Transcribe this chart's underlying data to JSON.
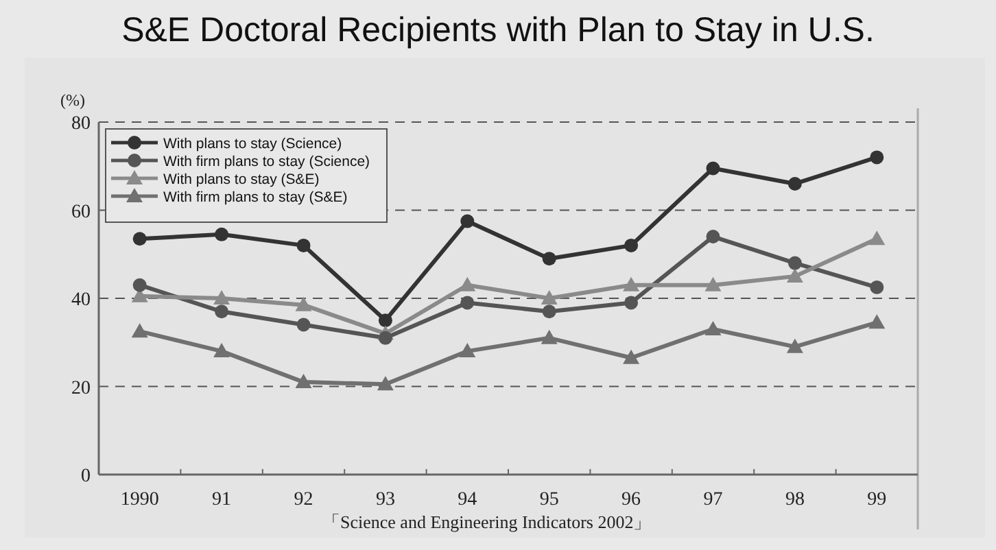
{
  "chart_data": {
    "type": "line",
    "title": "S&E Doctoral Recipients with Plan to Stay in U.S.",
    "ylabel": "(%)",
    "categories": [
      "1990",
      "91",
      "92",
      "93",
      "94",
      "95",
      "96",
      "97",
      "98",
      "99"
    ],
    "ylim": [
      0,
      80
    ],
    "yticks": [
      0,
      20,
      40,
      60,
      80
    ],
    "grid": "y",
    "legend": "top left",
    "annotations": [
      "「Science and Engineering Indicators 2002」"
    ],
    "series": [
      {
        "name": "With plans to stay (Science)",
        "color": "#333333",
        "marker": "circle",
        "values": [
          53.5,
          54.5,
          52,
          35,
          57.5,
          49,
          52,
          69.5,
          66,
          72
        ]
      },
      {
        "name": "With firm plans to stay (Science)",
        "color": "#555555",
        "marker": "circle",
        "values": [
          43,
          37,
          34,
          31,
          39,
          37,
          39,
          54,
          48,
          42.5
        ]
      },
      {
        "name": "With plans to stay (S&E)",
        "color": "#8a8a8a",
        "marker": "triangle",
        "values": [
          40.5,
          40,
          38.5,
          32,
          43,
          40,
          43,
          43,
          45,
          53.5
        ]
      },
      {
        "name": "With firm plans to stay (S&E)",
        "color": "#707070",
        "marker": "triangle",
        "values": [
          32.5,
          28,
          21,
          20.5,
          28,
          31,
          26.5,
          33,
          29,
          34.5
        ]
      }
    ]
  }
}
